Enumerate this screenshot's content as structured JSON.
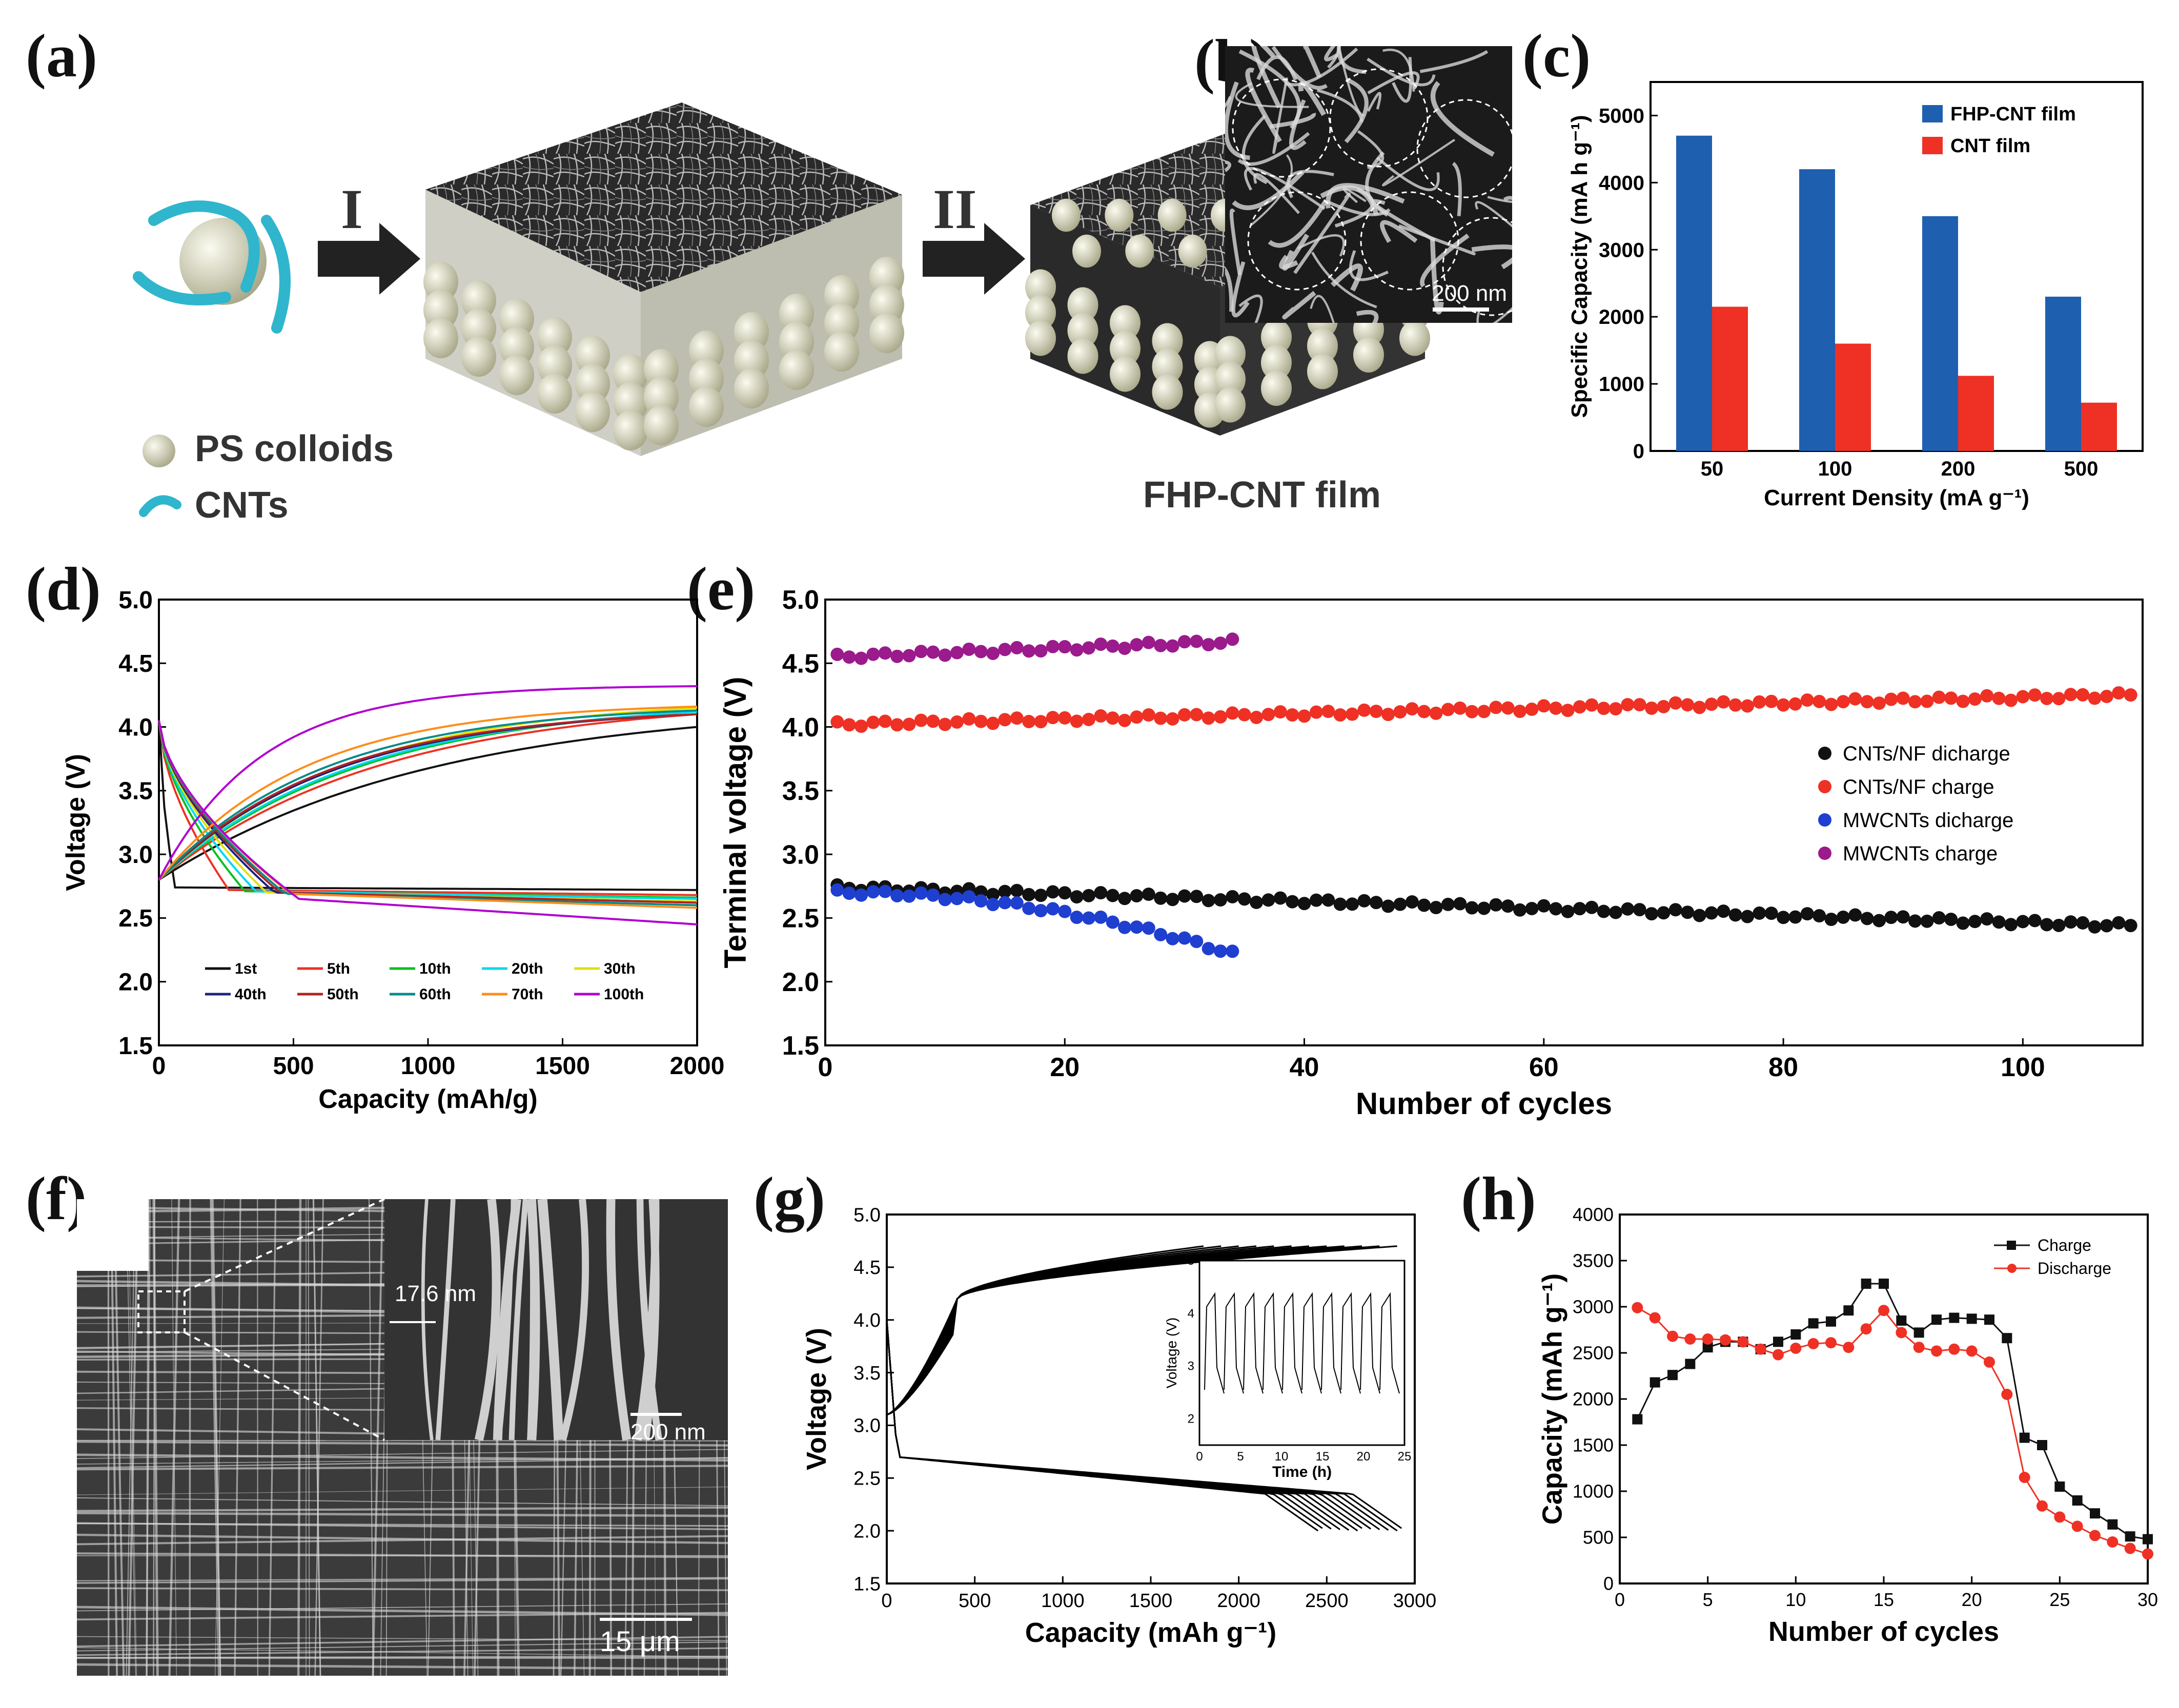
{
  "panels": {
    "a": "(a)",
    "b": "(b)",
    "c": "(c)",
    "d": "(d)",
    "e": "(e)",
    "f": "(f)",
    "g": "(g)",
    "h": "(h)"
  },
  "schematic": {
    "step1": "I",
    "step2": "II",
    "legend_ps": "PS colloids",
    "legend_cnt": "CNTs",
    "film_label": "FHP-CNT film",
    "sem_scale": "200 nm"
  },
  "micrograph_f": {
    "main_scale": "15 μm",
    "inset_scale": "200 nm",
    "diameter": "17.6 nm"
  },
  "colors": {
    "blue": "#1f5fb0",
    "red": "#ee3124",
    "magenta": "#9b1a8c",
    "green": "#00c020",
    "cyan": "#00d8ee",
    "yellow": "#e0e000",
    "navy": "#1a237e",
    "teal": "#008b8b",
    "orange": "#ff8c1a",
    "purple": "#b000d0"
  },
  "chart_data": [
    {
      "id": "c",
      "type": "bar",
      "categories": [
        "50",
        "100",
        "200",
        "500"
      ],
      "series": [
        {
          "name": "FHP-CNT film",
          "values": [
            4700,
            4200,
            3500,
            2300
          ],
          "color": "#1f5fb0"
        },
        {
          "name": "CNT film",
          "values": [
            2150,
            1600,
            1120,
            720
          ],
          "color": "#ee3124"
        }
      ],
      "xlabel": "Current Density (mA g⁻¹)",
      "ylabel": "Specific Capacity (mA h g⁻¹)",
      "ylim": [
        0,
        5500
      ],
      "yticks": [
        "0",
        "1000",
        "2000",
        "3000",
        "4000",
        "5000"
      ],
      "legend": "top-right"
    },
    {
      "id": "d",
      "type": "line",
      "xlabel": "Capacity (mAh/g)",
      "ylabel": "Voltage (V)",
      "xlim": [
        0,
        2000
      ],
      "ylim": [
        1.5,
        5.0
      ],
      "xticks": [
        "0",
        "500",
        "1000",
        "1500",
        "2000"
      ],
      "yticks": [
        "1.5",
        "2.0",
        "2.5",
        "3.0",
        "3.5",
        "4.0",
        "4.5",
        "5.0"
      ],
      "legend": "bottom-right",
      "series": [
        {
          "name": "1st",
          "color": "#111111",
          "charge_end": 4.0,
          "charge_k": 0.9,
          "dis_plateau": 2.74,
          "dis_end": 2.72,
          "dis_knee": 60
        },
        {
          "name": "5th",
          "color": "#ee3124",
          "charge_end": 4.1,
          "charge_k": 1.1,
          "dis_plateau": 2.72,
          "dis_end": 2.68,
          "dis_knee": 260
        },
        {
          "name": "10th",
          "color": "#00c020",
          "charge_end": 4.12,
          "charge_k": 1.2,
          "dis_plateau": 2.71,
          "dis_end": 2.66,
          "dis_knee": 320
        },
        {
          "name": "20th",
          "color": "#00d8ee",
          "charge_end": 4.12,
          "charge_k": 1.25,
          "dis_plateau": 2.71,
          "dis_end": 2.65,
          "dis_knee": 360
        },
        {
          "name": "30th",
          "color": "#e0e000",
          "charge_end": 4.15,
          "charge_k": 1.3,
          "dis_plateau": 2.7,
          "dis_end": 2.63,
          "dis_knee": 400
        },
        {
          "name": "40th",
          "color": "#1a237e",
          "charge_end": 4.1,
          "charge_k": 1.4,
          "dis_plateau": 2.7,
          "dis_end": 2.62,
          "dis_knee": 430
        },
        {
          "name": "50th",
          "color": "#b22222",
          "charge_end": 4.1,
          "charge_k": 1.45,
          "dis_plateau": 2.7,
          "dis_end": 2.62,
          "dis_knee": 450
        },
        {
          "name": "60th",
          "color": "#008b8b",
          "charge_end": 4.13,
          "charge_k": 1.5,
          "dis_plateau": 2.69,
          "dis_end": 2.6,
          "dis_knee": 470
        },
        {
          "name": "70th",
          "color": "#ff8c1a",
          "charge_end": 4.16,
          "charge_k": 1.7,
          "dis_plateau": 2.69,
          "dis_end": 2.58,
          "dis_knee": 490
        },
        {
          "name": "100th",
          "color": "#b000d0",
          "charge_end": 4.32,
          "charge_k": 2.4,
          "dis_plateau": 2.65,
          "dis_end": 2.45,
          "dis_knee": 520
        }
      ]
    },
    {
      "id": "e",
      "type": "scatter",
      "xlabel": "Number of cycles",
      "ylabel": "Terminal voltage (V)",
      "xlim": [
        0,
        110
      ],
      "ylim": [
        1.5,
        5.0
      ],
      "xticks": [
        "0",
        "20",
        "40",
        "60",
        "80",
        "100"
      ],
      "yticks": [
        "1.5",
        "2.0",
        "2.5",
        "3.0",
        "3.5",
        "4.0",
        "4.5",
        "5.0"
      ],
      "legend": "right",
      "series": [
        {
          "name": "CNTs/NF dicharge",
          "color": "#111111",
          "n": 109,
          "start": 2.74,
          "end": 2.44
        },
        {
          "name": "CNTs/NF charge",
          "color": "#ee3124",
          "n": 109,
          "start": 4.02,
          "end": 4.25
        },
        {
          "name": "MWCNTs dicharge",
          "color": "#1f3fd0",
          "n": 34,
          "start": 2.7,
          "end": 2.22
        },
        {
          "name": "MWCNTs charge",
          "color": "#9b1a8c",
          "n": 34,
          "start": 4.55,
          "end": 4.67
        }
      ]
    },
    {
      "id": "g",
      "type": "line",
      "xlabel": "Capacity (mAh g⁻¹)",
      "ylabel": "Voltage (V)",
      "xlim": [
        0,
        3000
      ],
      "ylim": [
        1.5,
        5.0
      ],
      "xticks": [
        "0",
        "500",
        "1000",
        "1500",
        "2000",
        "2500",
        "3000"
      ],
      "yticks": [
        "1.5",
        "2.0",
        "2.5",
        "3.0",
        "3.5",
        "4.0",
        "4.5",
        "5.0"
      ],
      "inset": {
        "xlabel": "Time (h)",
        "ylabel": "Voltage (V)",
        "xticks": [
          "0",
          "5",
          "10",
          "15",
          "20",
          "25"
        ],
        "yticks": [
          "2",
          "3",
          "4",
          "5"
        ],
        "cycles": 10
      }
    },
    {
      "id": "h",
      "type": "line",
      "xlabel": "Number of cycles",
      "ylabel": "Capacity (mAh g⁻¹)",
      "xlim": [
        0,
        30
      ],
      "ylim": [
        0,
        4000
      ],
      "xticks": [
        "0",
        "5",
        "10",
        "15",
        "20",
        "25",
        "30"
      ],
      "yticks": [
        "0",
        "500",
        "1000",
        "1500",
        "2000",
        "2500",
        "3000",
        "3500",
        "4000"
      ],
      "legend": "top-right",
      "x": [
        1,
        2,
        3,
        4,
        5,
        6,
        7,
        8,
        9,
        10,
        11,
        12,
        13,
        14,
        15,
        16,
        17,
        18,
        19,
        20,
        21,
        22,
        23,
        24,
        25,
        26,
        27,
        28,
        29,
        30
      ],
      "series": [
        {
          "name": "Charge",
          "color": "#111111",
          "marker": "square",
          "values": [
            1780,
            2180,
            2260,
            2380,
            2560,
            2620,
            2620,
            2540,
            2620,
            2700,
            2820,
            2840,
            2960,
            3250,
            3250,
            2850,
            2720,
            2860,
            2880,
            2870,
            2860,
            2660,
            1580,
            1500,
            1050,
            900,
            760,
            640,
            510,
            480
          ]
        },
        {
          "name": "Discharge",
          "color": "#ee3124",
          "marker": "circle",
          "values": [
            2990,
            2880,
            2680,
            2650,
            2650,
            2640,
            2620,
            2540,
            2480,
            2550,
            2600,
            2610,
            2560,
            2760,
            2960,
            2720,
            2560,
            2520,
            2540,
            2520,
            2400,
            2050,
            1150,
            840,
            720,
            620,
            520,
            450,
            380,
            320
          ]
        }
      ]
    }
  ]
}
